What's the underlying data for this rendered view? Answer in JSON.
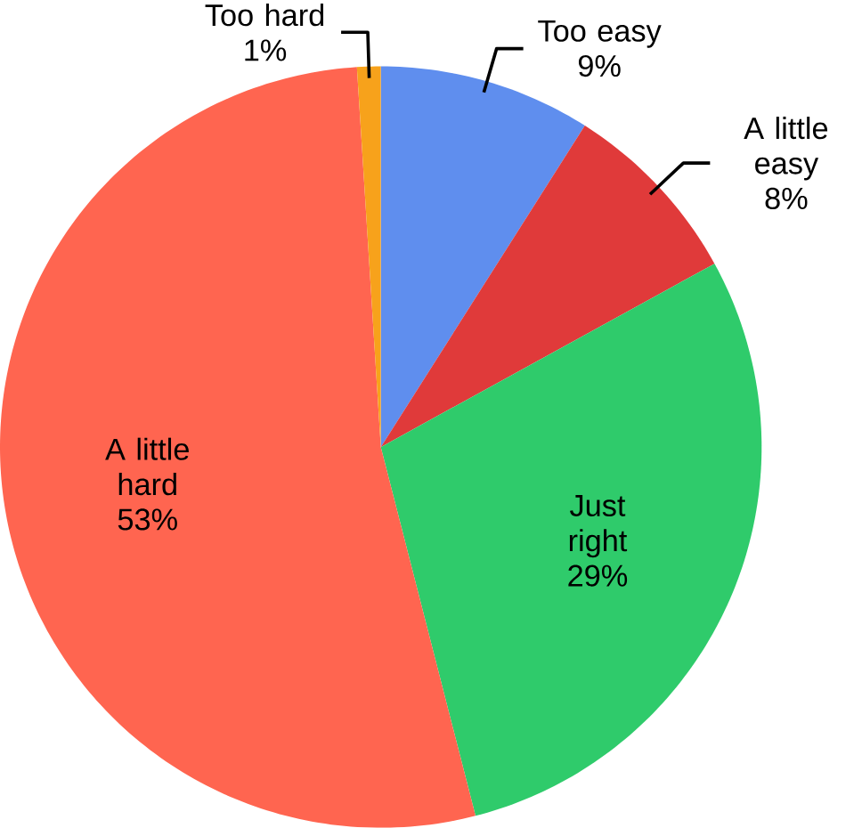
{
  "chart_data": {
    "type": "pie",
    "categories": [
      "Too easy",
      "A little easy",
      "Just right",
      "A little hard",
      "Too hard"
    ],
    "values": [
      9,
      8,
      29,
      53,
      1
    ],
    "colors": [
      "#5f8eee",
      "#e03a3a",
      "#2fcb6b",
      "#ff6550",
      "#f7a21b"
    ],
    "value_labels": [
      "9%",
      "8%",
      "29%",
      "53%",
      "1%"
    ]
  }
}
